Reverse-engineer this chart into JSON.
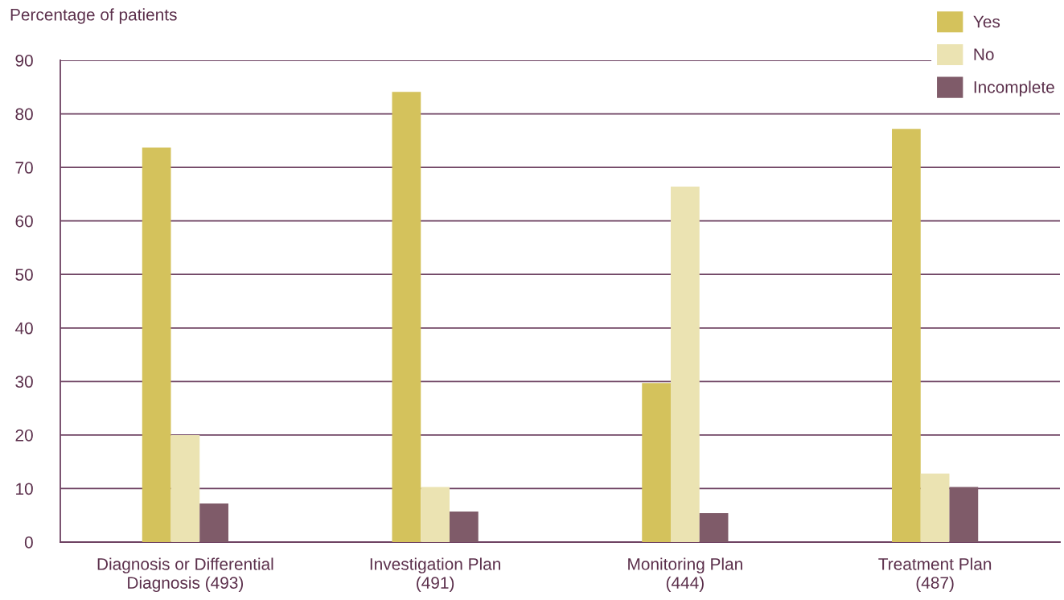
{
  "chart_data": {
    "type": "bar",
    "ylabel": "Percentage of patients",
    "categories": [
      "Diagnosis or Differential\nDiagnosis (493)",
      "Investigation Plan\n(491)",
      "Monitoring Plan\n(444)",
      "Treatment Plan\n(487)"
    ],
    "series": [
      {
        "name": "Yes",
        "color": "#d4c25c",
        "values": [
          73.7,
          84.1,
          29.7,
          77.2
        ]
      },
      {
        "name": "No",
        "color": "#ebe3b2",
        "values": [
          20.0,
          10.3,
          66.4,
          12.8
        ]
      },
      {
        "name": "Incomplete",
        "color": "#7f5b69",
        "values": [
          7.2,
          5.7,
          5.4,
          10.3
        ]
      }
    ],
    "ylim": [
      0,
      90
    ],
    "yticks": [
      0,
      10,
      20,
      30,
      40,
      50,
      60,
      70,
      80,
      90
    ],
    "grid": "y",
    "legend": "top right"
  }
}
